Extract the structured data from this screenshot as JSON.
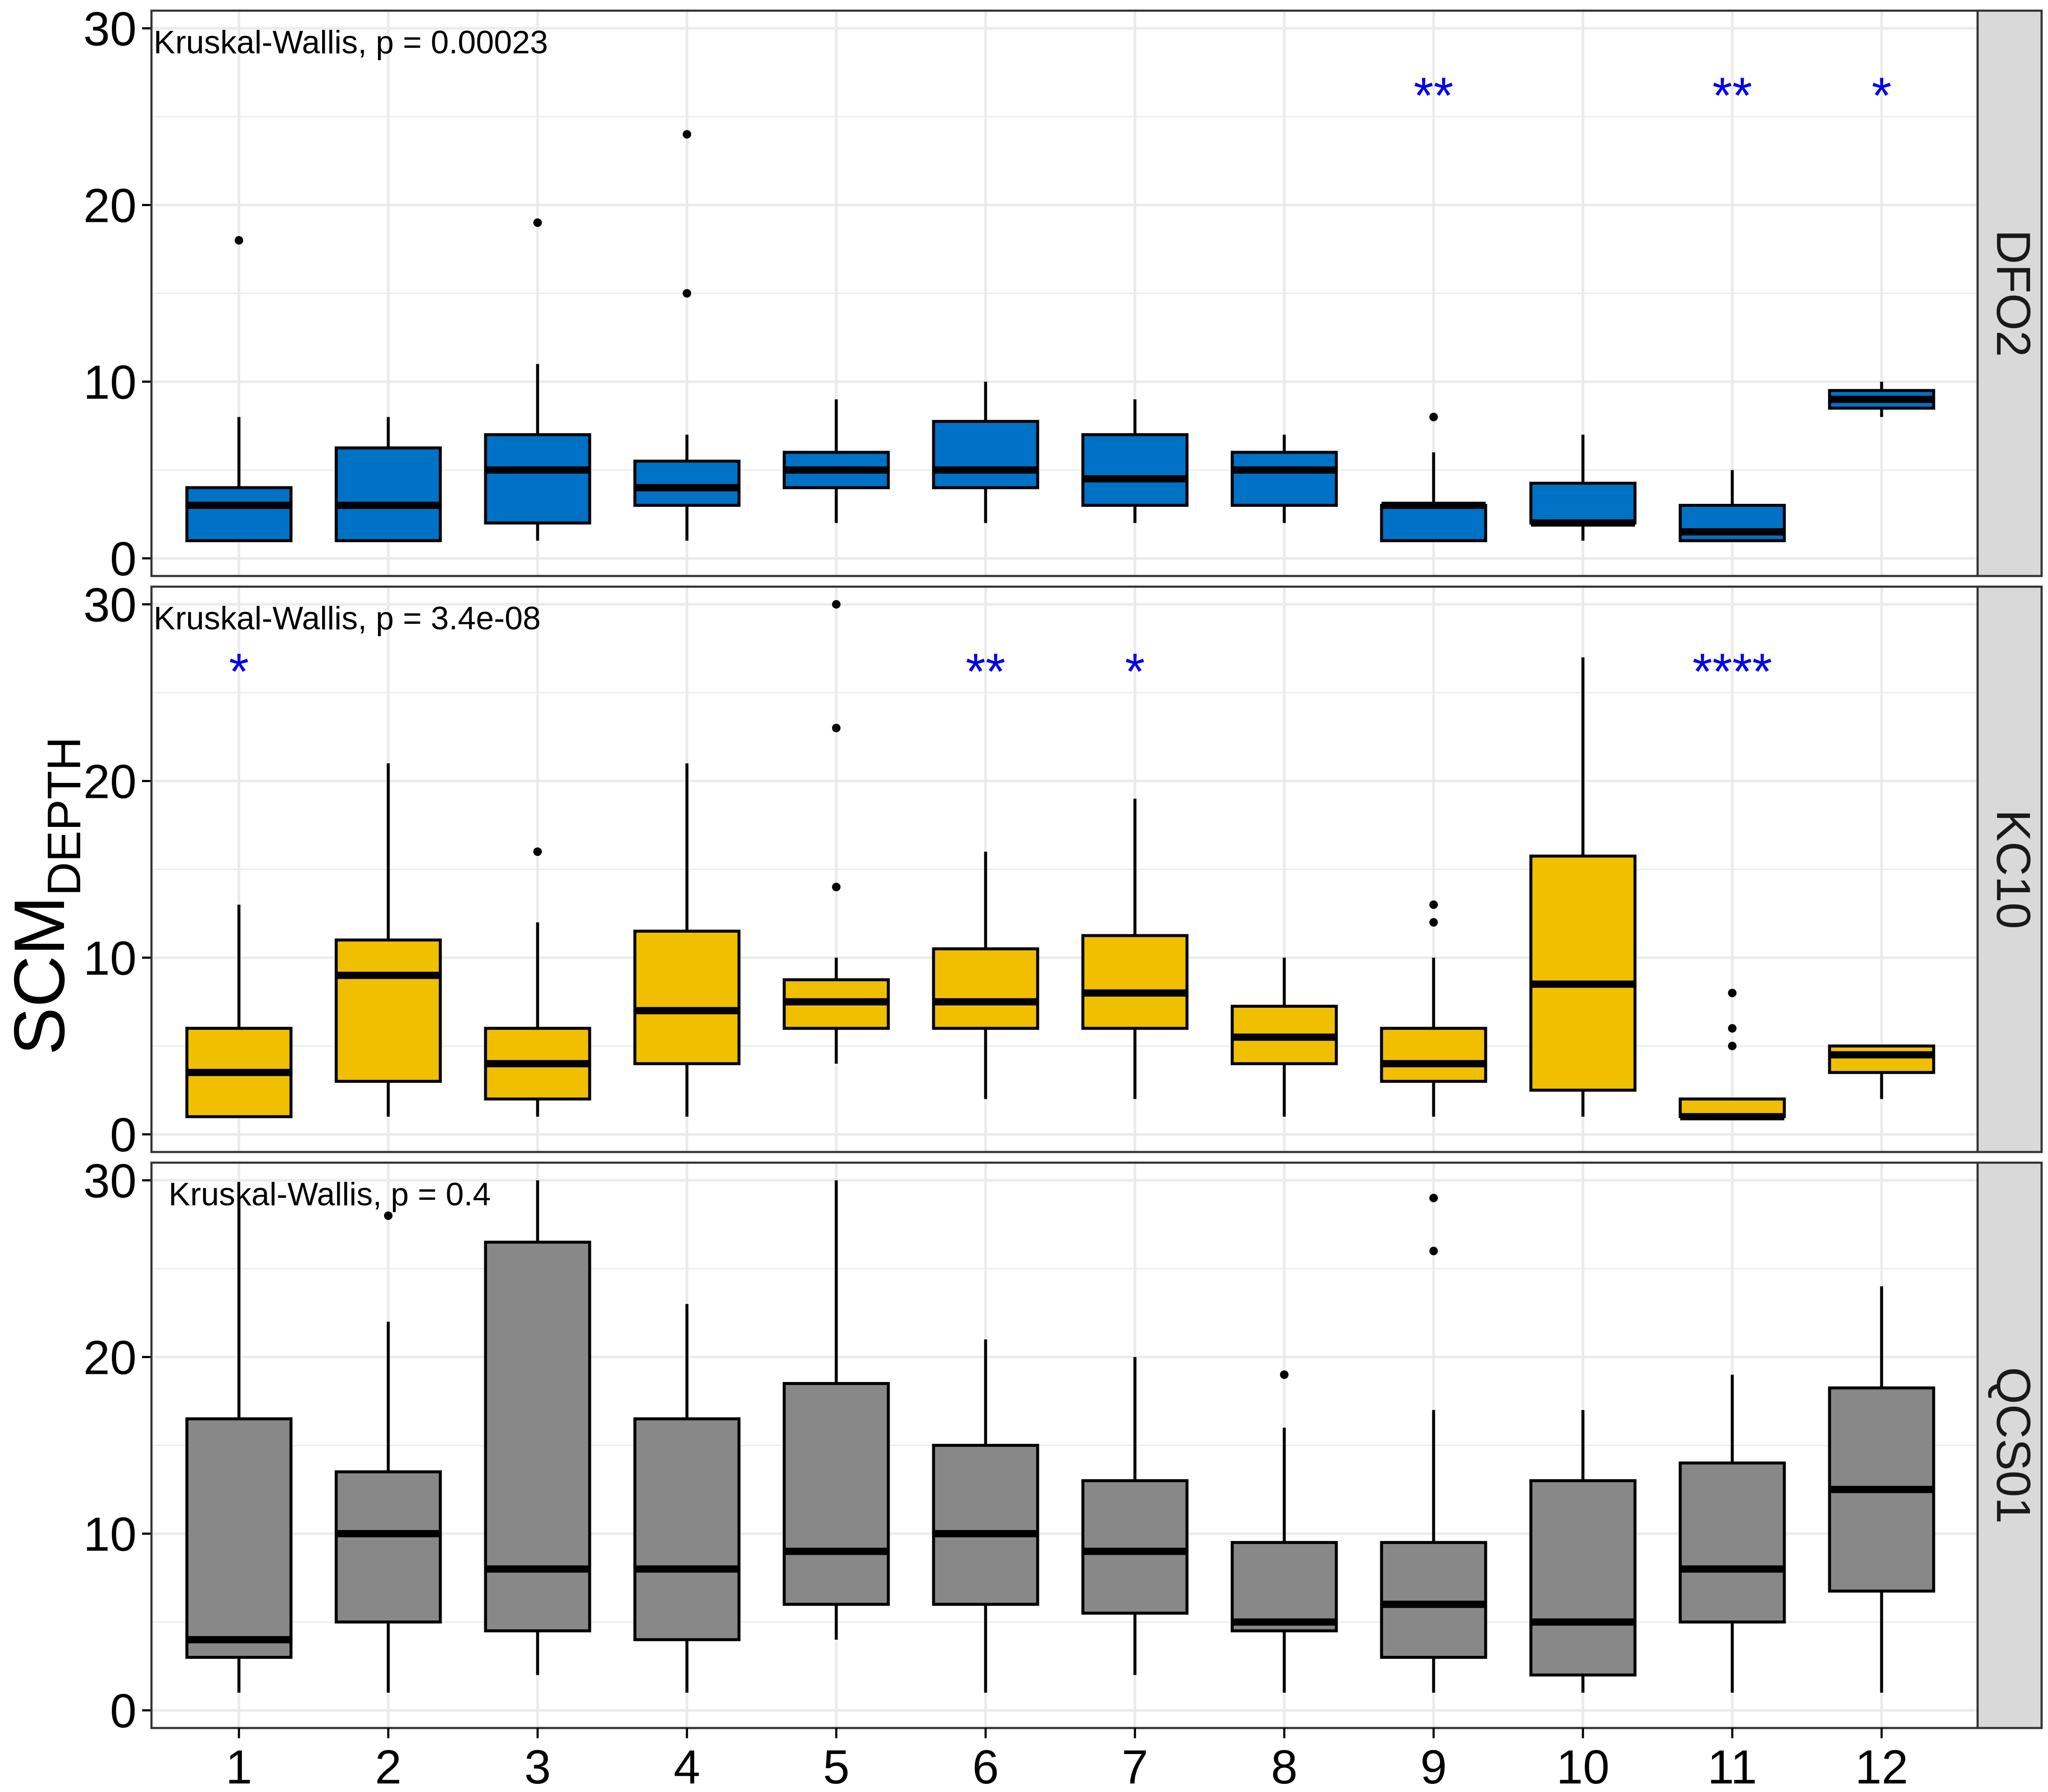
{
  "figure": {
    "ylabel_main": "SCM",
    "ylabel_sub": "DEPTH"
  },
  "colors": {
    "DFO2": "#0072C6",
    "KC10": "#F0C000",
    "QCS01": "#888888",
    "significance": "#0000EE",
    "strip_background": "#D9D9D9",
    "grid": "#EBEBEB"
  },
  "chart_data": [
    {
      "type": "box",
      "facet": "DFO2",
      "annotation": "Kruskal-Wallis, p = 0.00023",
      "ylim": [
        -1,
        31
      ],
      "yticks": [
        0,
        10,
        20,
        30
      ],
      "categories": [
        "1",
        "2",
        "3",
        "4",
        "5",
        "6",
        "7",
        "8",
        "9",
        "10",
        "11",
        "12"
      ],
      "boxes": [
        {
          "min": 1,
          "q1": 1,
          "median": 3,
          "q3": 4,
          "max": 8,
          "outliers": [
            18
          ]
        },
        {
          "min": 1,
          "q1": 1,
          "median": 3,
          "q3": 6.25,
          "max": 8,
          "outliers": []
        },
        {
          "min": 1,
          "q1": 2,
          "median": 5,
          "q3": 7,
          "max": 11,
          "outliers": [
            19
          ]
        },
        {
          "min": 1,
          "q1": 3,
          "median": 4,
          "q3": 5.5,
          "max": 7,
          "outliers": [
            15,
            24
          ]
        },
        {
          "min": 2,
          "q1": 4,
          "median": 5,
          "q3": 6,
          "max": 9,
          "outliers": []
        },
        {
          "min": 2,
          "q1": 4,
          "median": 5,
          "q3": 7.75,
          "max": 10,
          "outliers": []
        },
        {
          "min": 2,
          "q1": 3,
          "median": 4.5,
          "q3": 7,
          "max": 9,
          "outliers": []
        },
        {
          "min": 2,
          "q1": 3,
          "median": 5,
          "q3": 6,
          "max": 7,
          "outliers": []
        },
        {
          "min": 1,
          "q1": 1,
          "median": 3,
          "q3": 3,
          "max": 6,
          "outliers": [
            8
          ]
        },
        {
          "min": 1,
          "q1": 2,
          "median": 2,
          "q3": 4.25,
          "max": 7,
          "outliers": []
        },
        {
          "min": 1,
          "q1": 1,
          "median": 1.5,
          "q3": 3,
          "max": 5,
          "outliers": []
        },
        {
          "min": 8,
          "q1": 8.5,
          "median": 9,
          "q3": 9.5,
          "max": 10,
          "outliers": []
        }
      ],
      "significance": [
        "",
        "",
        "",
        "",
        "",
        "",
        "",
        "",
        "**",
        "",
        "**",
        "*"
      ]
    },
    {
      "type": "box",
      "facet": "KC10",
      "annotation": "Kruskal-Wallis, p = 3.4e-08",
      "ylim": [
        -1,
        31
      ],
      "yticks": [
        0,
        10,
        20,
        30
      ],
      "categories": [
        "1",
        "2",
        "3",
        "4",
        "5",
        "6",
        "7",
        "8",
        "9",
        "10",
        "11",
        "12"
      ],
      "boxes": [
        {
          "min": 1,
          "q1": 1,
          "median": 3.5,
          "q3": 6,
          "max": 13,
          "outliers": []
        },
        {
          "min": 1,
          "q1": 3,
          "median": 9,
          "q3": 11,
          "max": 21,
          "outliers": []
        },
        {
          "min": 1,
          "q1": 2,
          "median": 4,
          "q3": 6,
          "max": 12,
          "outliers": [
            16
          ]
        },
        {
          "min": 1,
          "q1": 4,
          "median": 7,
          "q3": 11.5,
          "max": 21,
          "outliers": []
        },
        {
          "min": 4,
          "q1": 6,
          "median": 7.5,
          "q3": 8.75,
          "max": 10,
          "outliers": [
            14,
            23,
            30
          ]
        },
        {
          "min": 2,
          "q1": 6,
          "median": 7.5,
          "q3": 10.5,
          "max": 16,
          "outliers": []
        },
        {
          "min": 2,
          "q1": 6,
          "median": 8,
          "q3": 11.25,
          "max": 19,
          "outliers": []
        },
        {
          "min": 1,
          "q1": 4,
          "median": 5.5,
          "q3": 7.25,
          "max": 10,
          "outliers": []
        },
        {
          "min": 1,
          "q1": 3,
          "median": 4,
          "q3": 6,
          "max": 10,
          "outliers": [
            12,
            13
          ]
        },
        {
          "min": 1,
          "q1": 2.5,
          "median": 8.5,
          "q3": 15.75,
          "max": 27,
          "outliers": []
        },
        {
          "min": 1,
          "q1": 1,
          "median": 1,
          "q3": 2,
          "max": 2,
          "outliers": [
            5,
            6,
            8
          ]
        },
        {
          "min": 2,
          "q1": 3.5,
          "median": 4.5,
          "q3": 5,
          "max": 5,
          "outliers": []
        }
      ],
      "significance": [
        "*",
        "",
        "",
        "",
        "",
        "**",
        "*",
        "",
        "",
        "",
        "****",
        ""
      ]
    },
    {
      "type": "box",
      "facet": "QCS01",
      "annotation": "Kruskal-Wallis, p = 0.4",
      "ylim": [
        -1,
        31
      ],
      "yticks": [
        0,
        10,
        20,
        30
      ],
      "categories": [
        "1",
        "2",
        "3",
        "4",
        "5",
        "6",
        "7",
        "8",
        "9",
        "10",
        "11",
        "12"
      ],
      "boxes": [
        {
          "min": 1,
          "q1": 3,
          "median": 4,
          "q3": 16.5,
          "max": 29,
          "outliers": []
        },
        {
          "min": 1,
          "q1": 5,
          "median": 10,
          "q3": 13.5,
          "max": 22,
          "outliers": [
            28
          ]
        },
        {
          "min": 2,
          "q1": 4.5,
          "median": 8,
          "q3": 26.5,
          "max": 30,
          "outliers": []
        },
        {
          "min": 1,
          "q1": 4,
          "median": 8,
          "q3": 16.5,
          "max": 23,
          "outliers": []
        },
        {
          "min": 4,
          "q1": 6,
          "median": 9,
          "q3": 18.5,
          "max": 30,
          "outliers": []
        },
        {
          "min": 1,
          "q1": 6,
          "median": 10,
          "q3": 15,
          "max": 21,
          "outliers": []
        },
        {
          "min": 2,
          "q1": 5.5,
          "median": 9,
          "q3": 13,
          "max": 20,
          "outliers": []
        },
        {
          "min": 1,
          "q1": 4.5,
          "median": 5,
          "q3": 9.5,
          "max": 16,
          "outliers": [
            19
          ]
        },
        {
          "min": 1,
          "q1": 3,
          "median": 6,
          "q3": 9.5,
          "max": 17,
          "outliers": [
            26,
            29
          ]
        },
        {
          "min": 1,
          "q1": 2,
          "median": 5,
          "q3": 13,
          "max": 17,
          "outliers": []
        },
        {
          "min": 1,
          "q1": 5,
          "median": 8,
          "q3": 14,
          "max": 19,
          "outliers": []
        },
        {
          "min": 1,
          "q1": 6.75,
          "median": 12.5,
          "q3": 18.25,
          "max": 24,
          "outliers": []
        }
      ],
      "significance": [
        "",
        "",
        "",
        "",
        "",
        "",
        "",
        "",
        "",
        "",
        "",
        ""
      ]
    }
  ]
}
